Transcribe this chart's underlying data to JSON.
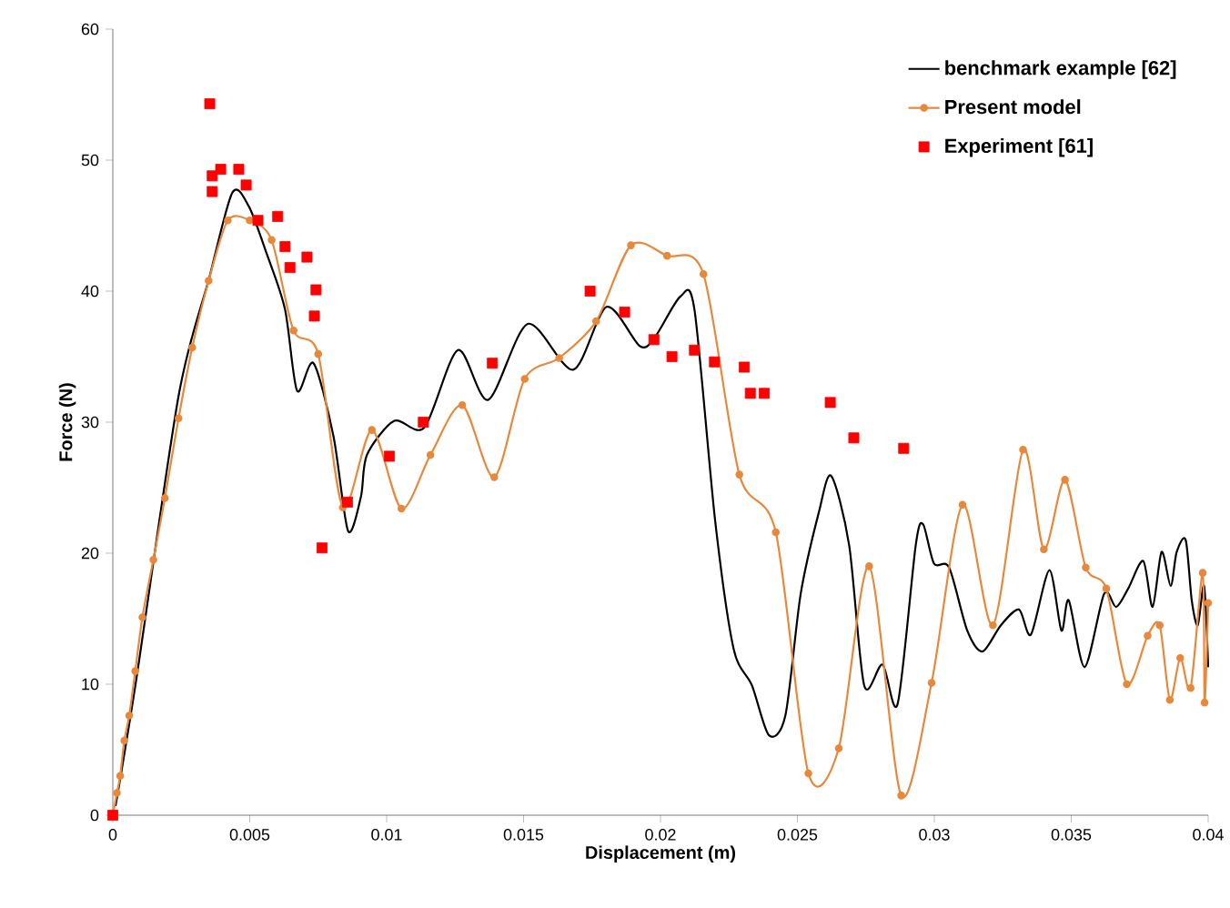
{
  "chart_data": {
    "type": "line",
    "xlabel": "Displacement (m)",
    "ylabel": "Force (N)",
    "xlim": [
      0,
      0.04
    ],
    "ylim": [
      0,
      60
    ],
    "xticks": [
      0,
      0.005,
      0.01,
      0.015,
      0.02,
      0.025,
      0.03,
      0.035,
      0.04
    ],
    "yticks": [
      0,
      10,
      20,
      30,
      40,
      50,
      60
    ],
    "grid": false,
    "legend": "top right",
    "series": [
      {
        "name": "benchmark example [62]",
        "marker": "none",
        "color": "#000000",
        "x": [
          0.0001,
          0.00086,
          0.00241,
          0.00352,
          0.00436,
          0.00496,
          0.00563,
          0.00629,
          0.00673,
          0.00733,
          0.00806,
          0.00859,
          0.00906,
          0.00928,
          0.01028,
          0.01138,
          0.0126,
          0.01371,
          0.01515,
          0.01681,
          0.01803,
          0.01925,
          0.0198,
          0.02073,
          0.02124,
          0.022,
          0.02267,
          0.02334,
          0.02396,
          0.02456,
          0.02512,
          0.02578,
          0.02623,
          0.02689,
          0.02744,
          0.02811,
          0.02866,
          0.02932,
          0.02959,
          0.02999,
          0.03054,
          0.0312,
          0.03176,
          0.03243,
          0.03309,
          0.03353,
          0.0342,
          0.03464,
          0.03491,
          0.03549,
          0.0362,
          0.03664,
          0.03708,
          0.03763,
          0.03797,
          0.0383,
          0.03863,
          0.03885,
          0.03918,
          0.0394,
          0.03962,
          0.03985,
          0.04
        ],
        "values": [
          0.7,
          10.4,
          32.1,
          41.0,
          47.5,
          46.5,
          42.8,
          38.6,
          32.4,
          34.5,
          28.9,
          21.7,
          24.3,
          27.5,
          30.1,
          29.6,
          35.5,
          31.7,
          37.5,
          34.0,
          38.8,
          35.8,
          36.5,
          39.6,
          38.6,
          22.4,
          12.7,
          9.9,
          6.1,
          7.6,
          16.9,
          23.1,
          25.9,
          20.6,
          9.9,
          11.5,
          8.5,
          20.6,
          22.2,
          19.2,
          18.9,
          14.1,
          12.5,
          14.5,
          15.7,
          13.8,
          18.7,
          14.1,
          16.4,
          11.3,
          16.9,
          15.9,
          17.3,
          19.4,
          15.9,
          20.1,
          17.5,
          20.1,
          21.0,
          16.4,
          14.5,
          17.5,
          11.3
        ]
      },
      {
        "name": "Present model",
        "marker": "circle",
        "color": "#e8883a",
        "x": [
          0,
          0.00015,
          0.00027,
          0.00042,
          0.0006,
          0.00082,
          0.00108,
          0.00148,
          0.0019,
          0.0024,
          0.0029,
          0.0035,
          0.0042,
          0.005,
          0.0058,
          0.0066,
          0.0075,
          0.0084,
          0.00946,
          0.01054,
          0.0116,
          0.01276,
          0.01393,
          0.01504,
          0.0163,
          0.01765,
          0.01892,
          0.02024,
          0.02157,
          0.02288,
          0.02421,
          0.0254,
          0.02651,
          0.02762,
          0.02879,
          0.0299,
          0.03103,
          0.03214,
          0.03324,
          0.034,
          0.03477,
          0.03553,
          0.03628,
          0.03703,
          0.03779,
          0.03823,
          0.0386,
          0.03898,
          0.03936,
          0.0398,
          0.03987,
          0.04
        ],
        "values": [
          0,
          1.7,
          3.0,
          5.7,
          7.6,
          11.0,
          15.1,
          19.5,
          24.2,
          30.3,
          35.7,
          40.8,
          45.4,
          45.4,
          43.9,
          37.0,
          35.2,
          23.5,
          29.4,
          23.4,
          27.5,
          31.3,
          25.8,
          33.3,
          34.9,
          37.7,
          43.5,
          42.7,
          41.3,
          26.0,
          21.6,
          3.2,
          5.1,
          19.0,
          1.5,
          10.1,
          23.7,
          14.5,
          27.9,
          20.3,
          25.6,
          18.9,
          17.3,
          10.0,
          13.7,
          14.5,
          8.8,
          12.0,
          9.7,
          18.5,
          8.6,
          16.2
        ]
      },
      {
        "name": "Experiment [61]",
        "type": "scatter",
        "marker": "square",
        "color": "#ff0000",
        "x": [
          0,
          0.00354,
          0.00363,
          0.00394,
          0.00363,
          0.0046,
          0.00487,
          0.0053,
          0.00602,
          0.00629,
          0.00647,
          0.00709,
          0.00742,
          0.00736,
          0.00764,
          0.00857,
          0.0101,
          0.01134,
          0.01386,
          0.01743,
          0.01869,
          0.01976,
          0.02042,
          0.02124,
          0.02197,
          0.02306,
          0.02328,
          0.02379,
          0.0262,
          0.02706,
          0.02888
        ],
        "values": [
          0,
          54.3,
          48.8,
          49.3,
          47.6,
          49.3,
          48.1,
          45.4,
          45.7,
          43.4,
          41.8,
          42.6,
          40.1,
          38.1,
          20.4,
          23.9,
          27.4,
          30.0,
          34.5,
          40.0,
          38.4,
          36.3,
          35.0,
          35.5,
          34.6,
          34.2,
          32.2,
          32.2,
          31.5,
          28.8,
          28.0
        ]
      }
    ]
  }
}
